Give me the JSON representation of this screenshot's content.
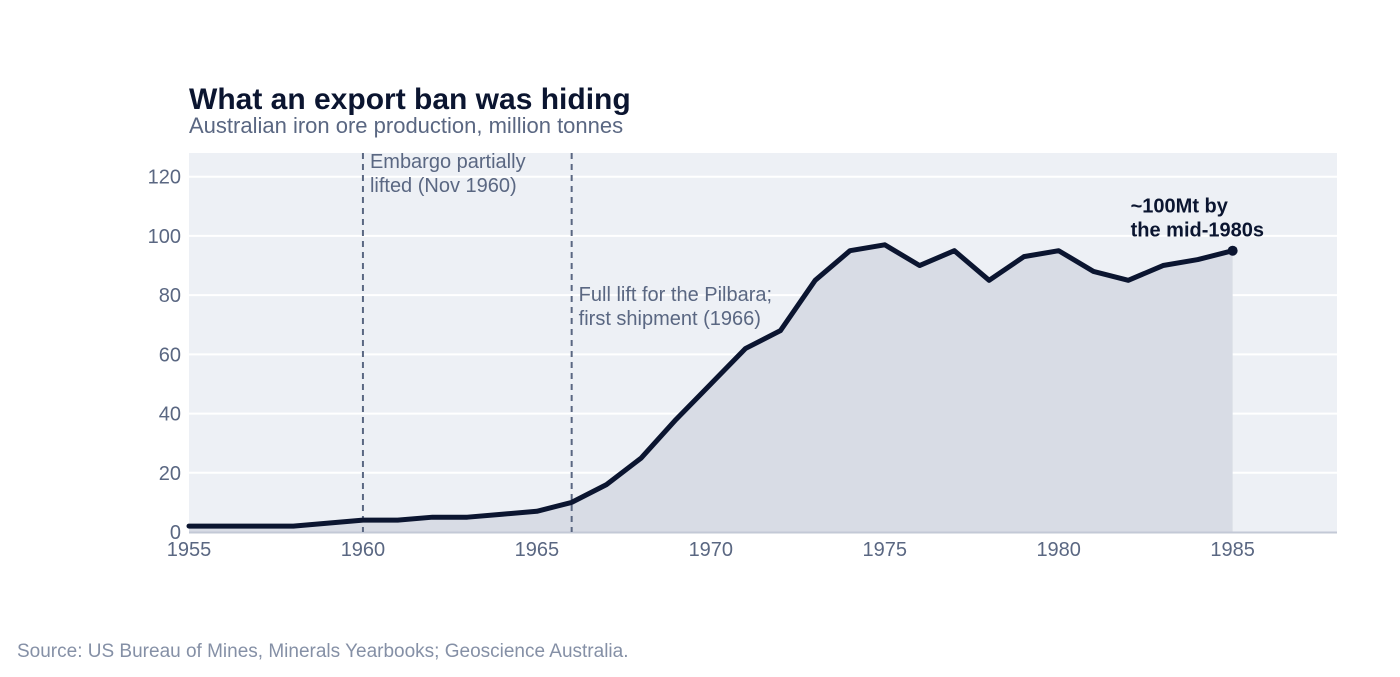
{
  "chart_data": {
    "type": "area",
    "title": "What an export ban was hiding",
    "subtitle": "Australian iron ore production, million tonnes",
    "xlabel": "",
    "ylabel": "",
    "xlim": [
      1955,
      1988
    ],
    "ylim": [
      0,
      128
    ],
    "x_ticks": [
      1955,
      1960,
      1965,
      1970,
      1975,
      1980,
      1985
    ],
    "y_ticks": [
      0,
      20,
      40,
      60,
      80,
      100,
      120
    ],
    "grid": "horizontal",
    "series": [
      {
        "x": [
          1955,
          1956,
          1957,
          1958,
          1959,
          1960,
          1961,
          1962,
          1963,
          1964,
          1965,
          1966,
          1967,
          1968,
          1969,
          1970,
          1971,
          1972,
          1973,
          1974,
          1975,
          1976,
          1977,
          1978,
          1979,
          1980,
          1981,
          1982,
          1983,
          1984,
          1985
        ],
        "values": [
          2,
          2,
          2,
          2,
          3,
          4,
          4,
          5,
          5,
          6,
          7,
          10,
          16,
          25,
          38,
          50,
          62,
          68,
          85,
          95,
          97,
          90,
          95,
          85,
          93,
          95,
          88,
          85,
          90,
          92,
          95
        ]
      }
    ],
    "annotations": [
      {
        "x": 1960,
        "lines": [
          "Embargo partially",
          "lifted (Nov 1960)"
        ],
        "y_text": 123
      },
      {
        "x": 1966,
        "lines": [
          "Full lift for the Pilbara;",
          "first shipment (1966)"
        ],
        "y_text": 78
      }
    ],
    "end_label": {
      "lines": [
        "~100Mt by",
        "the mid-1980s"
      ]
    },
    "colors": {
      "line": "#0b1530",
      "area": "#d8dce5",
      "plot_bg": "#edf0f5",
      "grid": "#ffffff",
      "annotation_line": "#5a6782"
    }
  },
  "footer": {
    "source": "Source: US Bureau of Mines, Minerals Yearbooks; Geoscience Australia."
  }
}
